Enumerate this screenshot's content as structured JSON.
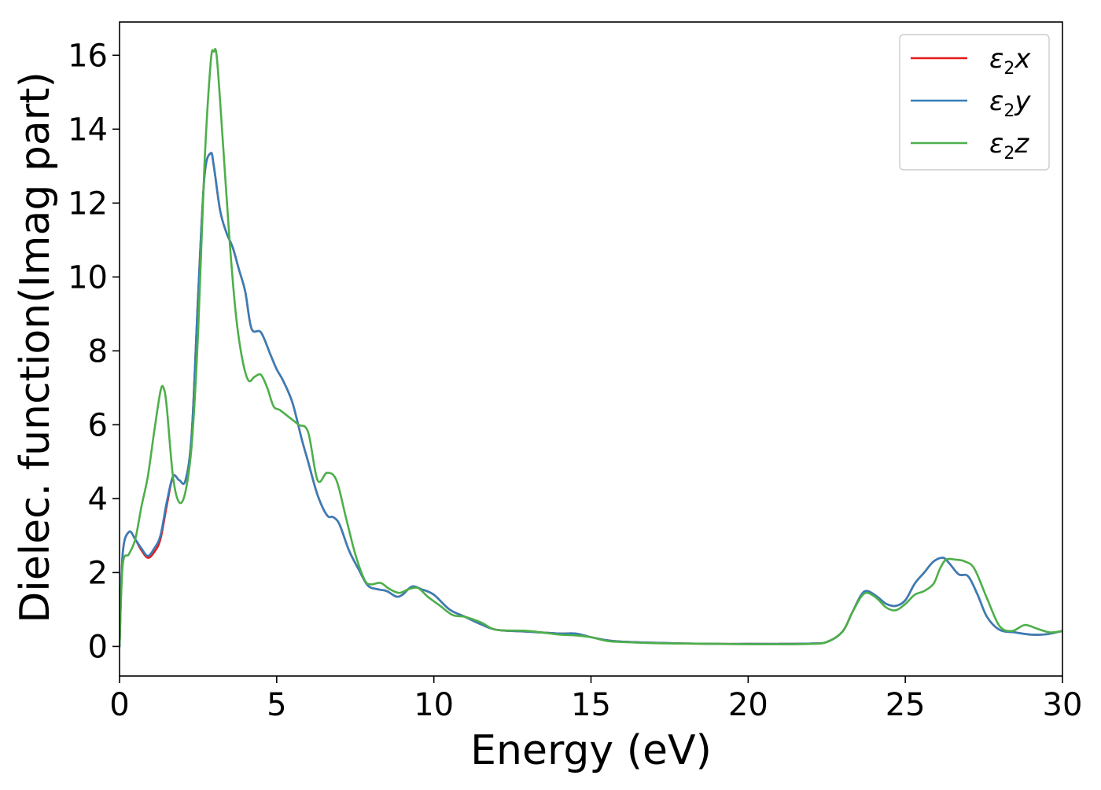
{
  "chart_data": {
    "type": "line",
    "xlabel": "Energy (eV)",
    "ylabel": "Dielec. function(Imag part)",
    "xlim": [
      0,
      30
    ],
    "ylim": [
      -0.8,
      16.9
    ],
    "xticks": [
      0,
      5,
      10,
      15,
      20,
      25,
      30
    ],
    "yticks": [
      0,
      2,
      4,
      6,
      8,
      10,
      12,
      14,
      16
    ],
    "grid": false,
    "legend_position": "top-right",
    "series": [
      {
        "name": "ε₂x",
        "label_main": "ε",
        "label_sub": "2",
        "label_axis": "x",
        "color": "#e41a1c",
        "x": [
          0,
          0.1,
          0.3,
          0.5,
          0.7,
          0.9,
          1.1,
          1.3,
          1.5,
          1.7,
          1.9,
          2.1,
          2.3,
          2.5,
          2.7,
          2.9,
          3.0,
          3.2,
          3.4,
          3.6,
          3.8,
          4.0,
          4.2,
          4.5,
          4.8,
          5.0,
          5.2,
          5.5,
          5.8,
          6.0,
          6.3,
          6.6,
          6.8,
          7.0,
          7.3,
          7.6,
          7.9,
          8.2,
          8.5,
          8.8,
          9.0,
          9.3,
          9.6,
          10.0,
          10.5,
          11.0,
          11.5,
          12.0,
          13.0,
          14.0,
          14.5,
          15.0,
          15.5,
          16.0,
          17.0,
          18.0,
          19.0,
          20.0,
          21.0,
          22.0,
          22.5,
          23.0,
          23.3,
          23.6,
          23.8,
          24.1,
          24.4,
          24.7,
          25.0,
          25.3,
          25.6,
          25.9,
          26.2,
          26.4,
          26.7,
          27.0,
          27.3,
          27.6,
          28.0,
          28.5,
          29.0,
          29.5,
          30.0
        ],
        "y": [
          0.0,
          2.5,
          3.1,
          2.9,
          2.6,
          2.4,
          2.55,
          2.9,
          3.8,
          4.6,
          4.5,
          4.5,
          5.8,
          9.5,
          12.7,
          13.35,
          13.0,
          11.8,
          11.2,
          10.8,
          10.2,
          9.6,
          8.6,
          8.5,
          7.9,
          7.5,
          7.2,
          6.6,
          5.6,
          5.0,
          4.1,
          3.55,
          3.5,
          3.3,
          2.6,
          2.1,
          1.65,
          1.55,
          1.5,
          1.35,
          1.4,
          1.62,
          1.55,
          1.4,
          1.0,
          0.8,
          0.6,
          0.45,
          0.4,
          0.35,
          0.35,
          0.25,
          0.17,
          0.13,
          0.1,
          0.08,
          0.07,
          0.07,
          0.07,
          0.08,
          0.12,
          0.4,
          0.9,
          1.4,
          1.5,
          1.35,
          1.15,
          1.1,
          1.25,
          1.7,
          2.0,
          2.3,
          2.4,
          2.25,
          1.95,
          1.9,
          1.4,
          0.8,
          0.45,
          0.38,
          0.32,
          0.33,
          0.42
        ]
      },
      {
        "name": "ε₂y",
        "label_main": "ε",
        "label_sub": "2",
        "label_axis": "y",
        "color": "#377eb8",
        "x": [
          0,
          0.1,
          0.3,
          0.5,
          0.7,
          0.9,
          1.1,
          1.3,
          1.5,
          1.7,
          1.9,
          2.1,
          2.3,
          2.5,
          2.7,
          2.9,
          3.0,
          3.2,
          3.4,
          3.6,
          3.8,
          4.0,
          4.2,
          4.5,
          4.8,
          5.0,
          5.2,
          5.5,
          5.8,
          6.0,
          6.3,
          6.6,
          6.8,
          7.0,
          7.3,
          7.6,
          7.9,
          8.2,
          8.5,
          8.8,
          9.0,
          9.3,
          9.6,
          10.0,
          10.5,
          11.0,
          11.5,
          12.0,
          13.0,
          14.0,
          14.5,
          15.0,
          15.5,
          16.0,
          17.0,
          18.0,
          19.0,
          20.0,
          21.0,
          22.0,
          22.5,
          23.0,
          23.3,
          23.6,
          23.8,
          24.1,
          24.4,
          24.7,
          25.0,
          25.3,
          25.6,
          25.9,
          26.2,
          26.4,
          26.7,
          27.0,
          27.3,
          27.6,
          28.0,
          28.5,
          29.0,
          29.5,
          30.0
        ],
        "y": [
          0.0,
          2.5,
          3.1,
          2.9,
          2.65,
          2.45,
          2.65,
          3.0,
          3.9,
          4.6,
          4.5,
          4.5,
          5.8,
          9.5,
          12.7,
          13.35,
          13.0,
          11.8,
          11.2,
          10.8,
          10.2,
          9.6,
          8.6,
          8.5,
          7.9,
          7.5,
          7.2,
          6.6,
          5.6,
          5.0,
          4.1,
          3.55,
          3.5,
          3.3,
          2.6,
          2.1,
          1.65,
          1.55,
          1.5,
          1.35,
          1.4,
          1.62,
          1.55,
          1.4,
          1.0,
          0.8,
          0.6,
          0.45,
          0.4,
          0.35,
          0.35,
          0.25,
          0.17,
          0.13,
          0.1,
          0.08,
          0.07,
          0.07,
          0.07,
          0.08,
          0.12,
          0.4,
          0.9,
          1.4,
          1.5,
          1.35,
          1.15,
          1.1,
          1.25,
          1.7,
          2.0,
          2.3,
          2.4,
          2.25,
          1.95,
          1.9,
          1.4,
          0.8,
          0.45,
          0.38,
          0.32,
          0.33,
          0.42
        ]
      },
      {
        "name": "ε₂z",
        "label_main": "ε",
        "label_sub": "2",
        "label_axis": "z",
        "color": "#4daf4a",
        "x": [
          0,
          0.1,
          0.3,
          0.5,
          0.7,
          0.9,
          1.1,
          1.3,
          1.4,
          1.5,
          1.7,
          1.9,
          2.1,
          2.3,
          2.5,
          2.7,
          2.9,
          3.0,
          3.1,
          3.3,
          3.5,
          3.7,
          3.9,
          4.1,
          4.3,
          4.5,
          4.7,
          4.9,
          5.1,
          5.4,
          5.7,
          6.0,
          6.3,
          6.6,
          6.9,
          7.2,
          7.5,
          7.8,
          8.0,
          8.3,
          8.6,
          8.9,
          9.2,
          9.5,
          9.8,
          10.2,
          10.6,
          11.0,
          11.5,
          12.0,
          13.0,
          14.0,
          14.5,
          15.0,
          15.5,
          16.0,
          17.0,
          18.0,
          19.0,
          20.0,
          21.0,
          22.0,
          22.5,
          23.0,
          23.3,
          23.6,
          23.8,
          24.1,
          24.4,
          24.7,
          25.0,
          25.3,
          25.6,
          25.9,
          26.1,
          26.3,
          26.6,
          26.9,
          27.2,
          27.6,
          28.0,
          28.4,
          28.8,
          29.2,
          29.6,
          30.0
        ],
        "y": [
          0.0,
          2.2,
          2.5,
          2.9,
          3.8,
          4.6,
          5.8,
          6.9,
          7.0,
          6.5,
          4.6,
          3.9,
          4.2,
          5.5,
          8.5,
          13.0,
          15.8,
          16.1,
          15.9,
          13.5,
          11.0,
          9.0,
          7.8,
          7.2,
          7.3,
          7.35,
          7.0,
          6.5,
          6.4,
          6.2,
          6.0,
          5.8,
          4.5,
          4.7,
          4.5,
          3.5,
          2.5,
          1.8,
          1.68,
          1.72,
          1.55,
          1.45,
          1.55,
          1.58,
          1.35,
          1.1,
          0.85,
          0.8,
          0.65,
          0.45,
          0.42,
          0.32,
          0.3,
          0.25,
          0.15,
          0.12,
          0.09,
          0.08,
          0.07,
          0.06,
          0.06,
          0.07,
          0.12,
          0.4,
          0.9,
          1.35,
          1.45,
          1.3,
          1.05,
          0.98,
          1.15,
          1.4,
          1.5,
          1.7,
          2.1,
          2.35,
          2.35,
          2.3,
          2.1,
          1.3,
          0.55,
          0.42,
          0.58,
          0.48,
          0.38,
          0.42
        ]
      }
    ]
  }
}
